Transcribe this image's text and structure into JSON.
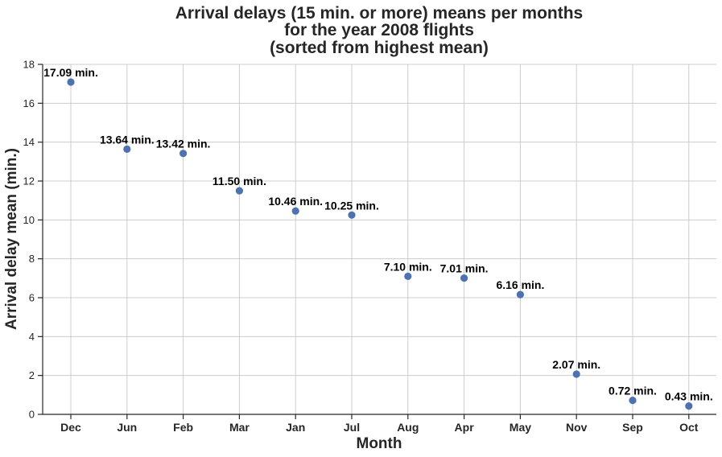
{
  "chart_data": {
    "type": "scatter",
    "title": [
      "Arrival delays (15 min. or more) means per months",
      "for the year 2008 flights",
      "(sorted from highest mean)"
    ],
    "xlabel": "Month",
    "ylabel": "Arrival delay mean (min.)",
    "categories": [
      "Dec",
      "Jun",
      "Feb",
      "Mar",
      "Jan",
      "Jul",
      "Aug",
      "Apr",
      "May",
      "Nov",
      "Sep",
      "Oct"
    ],
    "values": [
      17.09,
      13.64,
      13.42,
      11.5,
      10.46,
      10.25,
      7.1,
      7.01,
      6.16,
      2.07,
      0.72,
      0.43
    ],
    "data_labels": [
      "17.09 min.",
      "13.64 min.",
      "13.42 min.",
      "11.50 min.",
      "10.46 min.",
      "10.25 min.",
      "7.10 min.",
      "7.01 min.",
      "6.16 min.",
      "2.07 min.",
      "0.72 min.",
      "0.43 min."
    ],
    "ylim": [
      0,
      18
    ],
    "yticks": [
      0,
      2,
      4,
      6,
      8,
      10,
      12,
      14,
      16,
      18
    ],
    "grid": true,
    "marker_color": "#4c72b0"
  }
}
